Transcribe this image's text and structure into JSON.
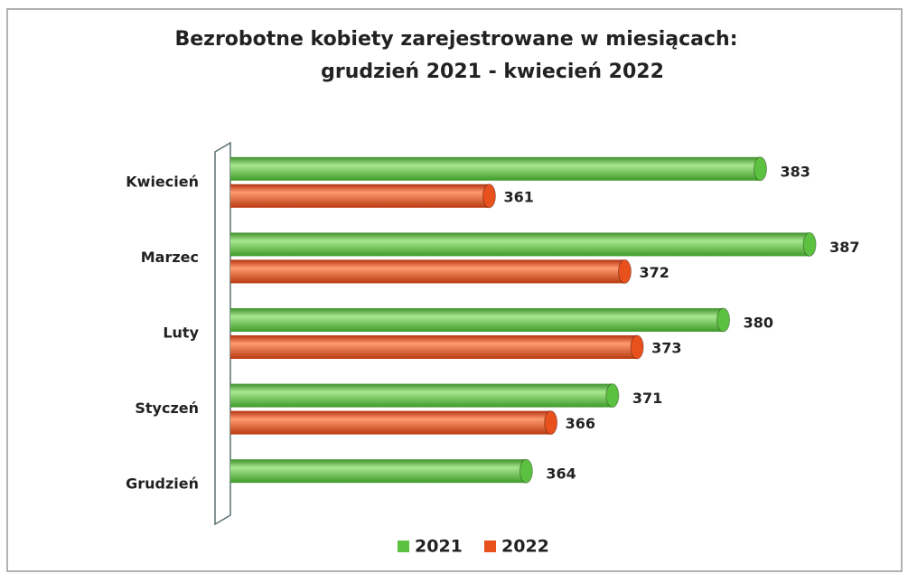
{
  "chart_data": {
    "type": "hbar",
    "title": "Bezrobotne kobiety zarejestrowane w miesiącach:",
    "subtitle": "grudzień 2021 - kwiecień 2022",
    "categories": [
      "Kwiecień",
      "Marzec",
      "Luty",
      "Styczeń",
      "Grudzień"
    ],
    "series": [
      {
        "name": "2021",
        "color": "#5cc040",
        "values": [
          383,
          387,
          380,
          371,
          364
        ]
      },
      {
        "name": "2022",
        "color": "#e8501c",
        "values": [
          361,
          372,
          373,
          366,
          null
        ]
      }
    ],
    "xlim": [
      340,
      390
    ],
    "legend": "bottom"
  }
}
